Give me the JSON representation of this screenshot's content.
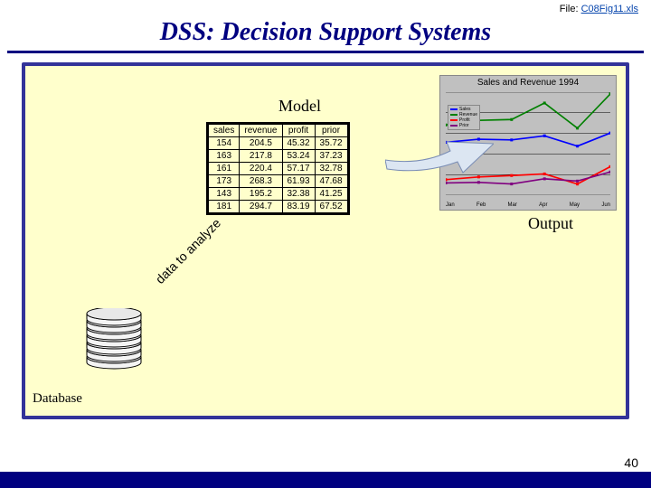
{
  "file": {
    "label": "File: ",
    "name": "C08Fig11.xls"
  },
  "title": "DSS: Decision Support Systems",
  "labels": {
    "model": "Model",
    "output": "Output",
    "database": "Database",
    "data_to_analyze": "data to analyze"
  },
  "table": {
    "columns": [
      "sales",
      "revenue",
      "profit",
      "prior"
    ],
    "rows": [
      [
        "154",
        "204.5",
        "45.32",
        "35.72"
      ],
      [
        "163",
        "217.8",
        "53.24",
        "37.23"
      ],
      [
        "161",
        "220.4",
        "57.17",
        "32.78"
      ],
      [
        "173",
        "268.3",
        "61.93",
        "47.68"
      ],
      [
        "143",
        "195.2",
        "32.38",
        "41.25"
      ],
      [
        "181",
        "294.7",
        "83.19",
        "67.52"
      ]
    ],
    "border_color": "#000000",
    "background": "#ffffcc",
    "fontsize": 10
  },
  "chart": {
    "title": "Sales and Revenue 1994",
    "type": "line",
    "categories": [
      "Jan",
      "Feb",
      "Mar",
      "Apr",
      "May",
      "Jun"
    ],
    "series": [
      {
        "name": "Sales",
        "color": "#0000ff",
        "values": [
          154,
          163,
          161,
          173,
          143,
          181
        ]
      },
      {
        "name": "Revenue",
        "color": "#008000",
        "values": [
          204.5,
          217.8,
          220.4,
          268.3,
          195.2,
          294.7
        ]
      },
      {
        "name": "Profit",
        "color": "#ff0000",
        "values": [
          45.32,
          53.24,
          57.17,
          61.93,
          32.38,
          83.19
        ]
      },
      {
        "name": "Prior",
        "color": "#800080",
        "values": [
          35.72,
          37.23,
          32.78,
          47.68,
          41.25,
          67.52
        ]
      }
    ],
    "legend": [
      "Sales",
      "Revenue",
      "Profit",
      "Prior"
    ],
    "ylim": [
      0,
      300
    ],
    "background_color": "#c0c0c0",
    "grid_color": "#000000",
    "label_fontsize": 6
  },
  "arrow": {
    "fill": "#dce6f2",
    "stroke": "#7a8db5"
  },
  "panel": {
    "background": "#ffffcc",
    "border_color": "#333399"
  },
  "database_shape": {
    "stroke": "#000000",
    "fill_top": "#e8e8e8",
    "fill_body": "#f4f4f4"
  },
  "slide_number": "40"
}
